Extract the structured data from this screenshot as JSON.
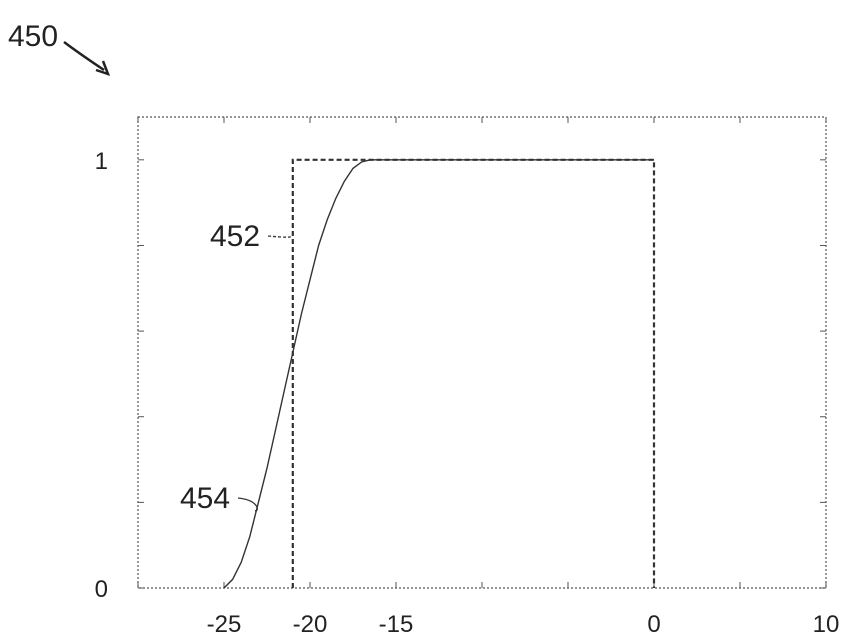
{
  "figure_label": "450",
  "chart_data": {
    "type": "line",
    "title": "",
    "xlabel": "",
    "ylabel": "",
    "xlim": [
      -30,
      10
    ],
    "ylim": [
      0,
      1.1
    ],
    "x_ticks": [
      {
        "value": -25,
        "label": "-25"
      },
      {
        "value": -20,
        "label": "-20"
      },
      {
        "value": -15,
        "label": "-15"
      },
      {
        "value": 0,
        "label": "0"
      },
      {
        "value": 10,
        "label": "10"
      }
    ],
    "y_ticks": [
      {
        "value": 0,
        "label": "0"
      },
      {
        "value": 1,
        "label": "1"
      }
    ],
    "grid": false,
    "series": [
      {
        "ref": "452",
        "style": "dashed",
        "x": [
          -21,
          -21,
          0,
          0
        ],
        "y": [
          0,
          1,
          1,
          0
        ]
      },
      {
        "ref": "454",
        "style": "solid",
        "x": [
          -25,
          -24.5,
          -24,
          -23.5,
          -23,
          -22.5,
          -22,
          -21.5,
          -21,
          -20.5,
          -20,
          -19.5,
          -19,
          -18.5,
          -18,
          -17.5,
          -17,
          -16.5,
          -16,
          -15.5,
          -15,
          -10,
          0
        ],
        "y": [
          0,
          0.02,
          0.06,
          0.12,
          0.2,
          0.28,
          0.37,
          0.46,
          0.55,
          0.64,
          0.72,
          0.8,
          0.86,
          0.91,
          0.95,
          0.98,
          0.995,
          1.0,
          1.0,
          1.0,
          1.0,
          1.0,
          1.0
        ]
      }
    ],
    "annotations": [
      {
        "text": "452",
        "target_series": "452"
      },
      {
        "text": "454",
        "target_series": "454"
      }
    ]
  }
}
